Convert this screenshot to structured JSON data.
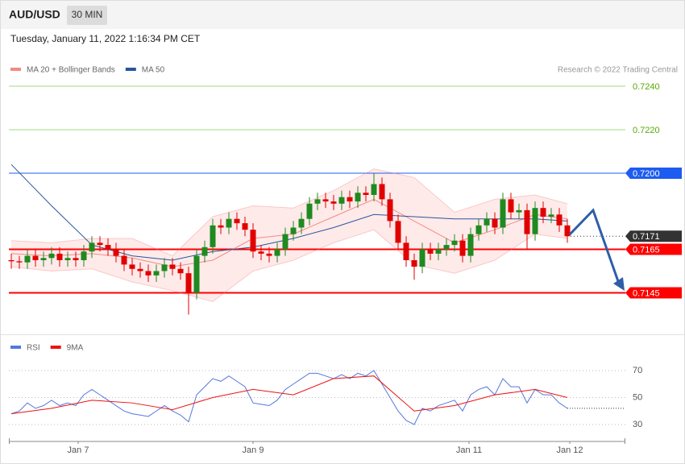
{
  "header": {
    "symbol": "AUD/USD",
    "interval": "30 MIN",
    "datetime": "Tuesday, January 11, 2022 1:16:34 PM CET"
  },
  "chart_data": [
    {
      "type": "candlestick",
      "legend": [
        {
          "name": "MA 20 + Bollinger Bands",
          "color": "#f28b82"
        },
        {
          "name": "MA 50",
          "color": "#2a5599"
        }
      ],
      "credit": "Research © 2022 Trading Central",
      "up_color": "#1f8a1f",
      "down_color": "#e00000",
      "xlim": [
        -0.3,
        76.2
      ],
      "ylim": [
        0.7126,
        0.7256
      ],
      "open": [
        0.716,
        0.71595,
        0.7159,
        0.7162,
        0.716,
        0.7161,
        0.7163,
        0.716,
        0.7161,
        0.716,
        0.7164,
        0.7168,
        0.7167,
        0.7165,
        0.7162,
        0.7158,
        0.7156,
        0.7155,
        0.7153,
        0.7155,
        0.7158,
        0.7156,
        0.7154,
        0.7145,
        0.7162,
        0.7166,
        0.7176,
        0.7175,
        0.7179,
        0.7177,
        0.7174,
        0.7164,
        0.7163,
        0.7162,
        0.7165,
        0.7172,
        0.7175,
        0.7179,
        0.7186,
        0.7188,
        0.7187,
        0.7186,
        0.7189,
        0.7187,
        0.7191,
        0.719,
        0.7195,
        0.7188,
        0.7178,
        0.7168,
        0.716,
        0.7157,
        0.7165,
        0.7163,
        0.7165,
        0.7167,
        0.7169,
        0.7162,
        0.7172,
        0.7176,
        0.7179,
        0.7175,
        0.7188,
        0.7182,
        0.7183,
        0.7172,
        0.7184,
        0.718,
        0.7181,
        0.7176
      ],
      "high": [
        0.7163,
        0.7162,
        0.7165,
        0.7165,
        0.7164,
        0.7166,
        0.7166,
        0.7164,
        0.7164,
        0.7167,
        0.7171,
        0.7171,
        0.717,
        0.7168,
        0.7165,
        0.7161,
        0.7159,
        0.7158,
        0.7158,
        0.7161,
        0.7161,
        0.7159,
        0.7157,
        0.7165,
        0.7169,
        0.7179,
        0.7179,
        0.7182,
        0.7182,
        0.718,
        0.7177,
        0.7167,
        0.7166,
        0.7168,
        0.7175,
        0.7178,
        0.7182,
        0.7189,
        0.7191,
        0.7191,
        0.719,
        0.7192,
        0.7192,
        0.7194,
        0.7194,
        0.72,
        0.7198,
        0.7191,
        0.7181,
        0.7171,
        0.7163,
        0.7168,
        0.7168,
        0.7168,
        0.717,
        0.7172,
        0.7172,
        0.7175,
        0.7179,
        0.7182,
        0.7182,
        0.7191,
        0.7191,
        0.7186,
        0.7186,
        0.7187,
        0.7187,
        0.7184,
        0.7184,
        0.7179
      ],
      "low": [
        0.7156,
        0.7156,
        0.7156,
        0.7157,
        0.7157,
        0.7158,
        0.7157,
        0.7157,
        0.7157,
        0.7157,
        0.7161,
        0.7164,
        0.7162,
        0.7159,
        0.7155,
        0.7153,
        0.7152,
        0.715,
        0.715,
        0.7152,
        0.7153,
        0.7151,
        0.7135,
        0.7142,
        0.7159,
        0.7163,
        0.7172,
        0.7172,
        0.7174,
        0.7171,
        0.7161,
        0.716,
        0.7159,
        0.7159,
        0.7162,
        0.7169,
        0.7172,
        0.7176,
        0.7183,
        0.7184,
        0.7183,
        0.7183,
        0.7184,
        0.7184,
        0.7187,
        0.7187,
        0.7185,
        0.7175,
        0.7165,
        0.7157,
        0.7151,
        0.7154,
        0.716,
        0.716,
        0.7162,
        0.7164,
        0.7159,
        0.7159,
        0.7169,
        0.7173,
        0.7172,
        0.7172,
        0.7179,
        0.7179,
        0.7165,
        0.7169,
        0.7177,
        0.7177,
        0.7173,
        0.7168
      ],
      "close": [
        0.71595,
        0.7159,
        0.7162,
        0.716,
        0.7161,
        0.7163,
        0.716,
        0.7161,
        0.716,
        0.7164,
        0.7168,
        0.7167,
        0.7165,
        0.7162,
        0.7158,
        0.7156,
        0.7155,
        0.7153,
        0.7155,
        0.7158,
        0.7156,
        0.7154,
        0.7145,
        0.7162,
        0.7166,
        0.7176,
        0.7175,
        0.7179,
        0.7177,
        0.7174,
        0.7164,
        0.7163,
        0.7162,
        0.7165,
        0.7172,
        0.7175,
        0.7179,
        0.7186,
        0.7188,
        0.7187,
        0.7186,
        0.7189,
        0.7187,
        0.7191,
        0.719,
        0.7195,
        0.7188,
        0.7178,
        0.7168,
        0.716,
        0.7157,
        0.7165,
        0.7163,
        0.7165,
        0.7167,
        0.7169,
        0.7162,
        0.7172,
        0.7176,
        0.7179,
        0.7175,
        0.7188,
        0.7182,
        0.7183,
        0.7172,
        0.7184,
        0.718,
        0.7181,
        0.7176,
        0.7171
      ],
      "overlays": {
        "x": [
          0,
          5,
          10,
          15,
          20,
          25,
          30,
          35,
          40,
          45,
          50,
          55,
          60,
          65,
          69
        ],
        "ma20": [
          0.7163,
          0.7162,
          0.7163,
          0.7161,
          0.7157,
          0.716,
          0.717,
          0.7172,
          0.718,
          0.7188,
          0.7178,
          0.7168,
          0.7174,
          0.7181,
          0.7179
        ],
        "ma50": [
          0.7204,
          0.7185,
          0.7167,
          0.7162,
          0.716,
          0.7164,
          0.7166,
          0.717,
          0.7175,
          0.7181,
          0.718,
          0.7179,
          0.7179,
          0.7179,
          0.7178
        ],
        "bb_upper": [
          0.7169,
          0.7168,
          0.717,
          0.717,
          0.7162,
          0.718,
          0.7185,
          0.7184,
          0.7192,
          0.7202,
          0.7198,
          0.7182,
          0.7188,
          0.719,
          0.7186
        ],
        "bb_lower": [
          0.7157,
          0.7155,
          0.7156,
          0.715,
          0.7146,
          0.7141,
          0.7155,
          0.716,
          0.7168,
          0.7174,
          0.7158,
          0.7154,
          0.716,
          0.7172,
          0.717
        ]
      },
      "levels": [
        {
          "value": 0.724,
          "label": "0.7240",
          "color": "#a6d785",
          "text_color": "#55aa00",
          "width": 1,
          "boxed": false
        },
        {
          "value": 0.722,
          "label": "0.7220",
          "color": "#a6d785",
          "text_color": "#55aa00",
          "width": 1,
          "boxed": false
        },
        {
          "value": 0.72,
          "label": "0.7200",
          "color": "#1e5bf0",
          "text_color": "#ffffff",
          "width": 1,
          "boxed": true
        },
        {
          "value": 0.7165,
          "label": "0.7165",
          "color": "#ff0000",
          "text_color": "#ffffff",
          "width": 2,
          "boxed": true
        },
        {
          "value": 0.7145,
          "label": "0.7145",
          "color": "#ff0000",
          "text_color": "#ffffff",
          "width": 2,
          "boxed": true
        }
      ],
      "last_price": {
        "value": 0.7171,
        "label": "0.7171",
        "color": "#333333"
      }
    },
    {
      "type": "line",
      "legend": [
        {
          "name": "RSI",
          "color": "#5577dd"
        },
        {
          "name": "9MA",
          "color": "#ee1111"
        }
      ],
      "xlim": [
        -0.3,
        76.2
      ],
      "ylim": [
        19,
        82
      ],
      "yticks": [
        30,
        50,
        70
      ],
      "grid": true,
      "xticks": [
        {
          "value": 8.3,
          "label": "Jan 7"
        },
        {
          "value": 30,
          "label": "Jan 9"
        },
        {
          "value": 56.8,
          "label": "Jan 11"
        },
        {
          "value": 69.3,
          "label": "Jan 12"
        }
      ],
      "rsi": [
        38,
        40,
        46,
        42,
        44,
        48,
        44,
        46,
        44,
        52,
        56,
        52,
        48,
        44,
        40,
        38,
        37,
        36,
        40,
        44,
        40,
        37,
        32,
        52,
        58,
        64,
        62,
        66,
        62,
        58,
        46,
        45,
        44,
        48,
        56,
        60,
        64,
        68,
        68,
        66,
        64,
        67,
        64,
        68,
        66,
        70,
        60,
        50,
        40,
        33,
        30,
        42,
        40,
        44,
        46,
        48,
        40,
        52,
        56,
        58,
        52,
        64,
        58,
        58,
        46,
        56,
        52,
        52,
        46,
        42
      ],
      "ma_x": [
        0,
        5,
        10,
        15,
        20,
        25,
        30,
        35,
        40,
        45,
        50,
        55,
        60,
        65,
        69
      ],
      "ma": [
        38,
        42,
        48,
        46,
        41,
        50,
        56,
        52,
        64,
        66,
        40,
        44,
        52,
        56,
        50
      ]
    }
  ]
}
